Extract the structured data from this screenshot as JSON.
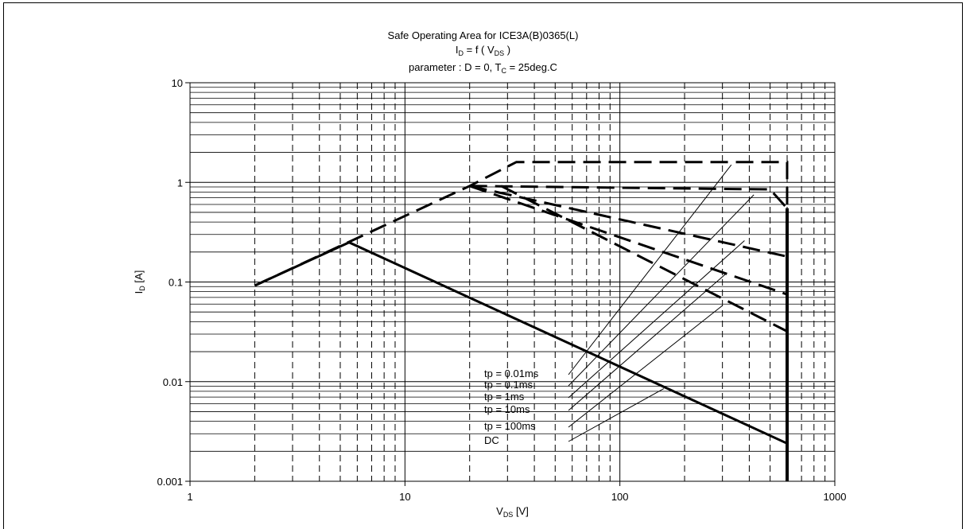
{
  "chart_data": {
    "type": "line",
    "title": "Safe Operating Area for ICE3A(B)0365(L)",
    "subtitle": {
      "main": "I",
      "main_sub": "D",
      "eq": " = f ( V",
      "eq_sub": "DS",
      "end": " )"
    },
    "parameter": {
      "prefix": "parameter : D = 0, T",
      "sub": "C",
      "suffix": " = 25deg.C"
    },
    "xlabel": {
      "main": "V",
      "sub": "DS",
      "unit": " [V]"
    },
    "ylabel": {
      "main": "I",
      "sub": "D",
      "unit": " [A]"
    },
    "x_scale": "log",
    "y_scale": "log",
    "xlim": [
      1,
      1000
    ],
    "ylim": [
      0.001,
      10
    ],
    "x_ticks": [
      "1",
      "10",
      "100",
      "1000"
    ],
    "y_ticks": [
      "10",
      "1",
      "0.1",
      "0.01",
      "0.001"
    ],
    "grid": true,
    "series": [
      {
        "name": "tp = 0.01ms",
        "style": "dashed",
        "x": [
          2,
          20,
          33,
          500,
          600,
          600
        ],
        "y": [
          0.092,
          0.92,
          1.6,
          1.6,
          1.6,
          0.001
        ]
      },
      {
        "name": "tp = 0.1ms",
        "style": "dashed",
        "x": [
          20,
          500,
          600
        ],
        "y": [
          0.92,
          0.85,
          0.55
        ]
      },
      {
        "name": "tp = 1ms",
        "style": "dashed",
        "x": [
          20,
          600
        ],
        "y": [
          0.92,
          0.18
        ]
      },
      {
        "name": "tp = 10ms",
        "style": "dashed",
        "x": [
          20,
          600
        ],
        "y": [
          0.92,
          0.075
        ]
      },
      {
        "name": "tp = 100ms",
        "style": "dashed",
        "x": [
          28,
          600
        ],
        "y": [
          0.92,
          0.032
        ]
      },
      {
        "name": "DC",
        "style": "solid",
        "x": [
          2,
          5.5,
          600,
          600
        ],
        "y": [
          0.092,
          0.25,
          0.0024,
          0.001
        ]
      }
    ],
    "annotations": [
      "tp = 0.01ms",
      "tp = 0.1ms",
      "tp = 1ms",
      "tp = 10ms",
      "tp = 100ms",
      "DC"
    ],
    "legend": "annotations with leader lines, lower-center"
  }
}
